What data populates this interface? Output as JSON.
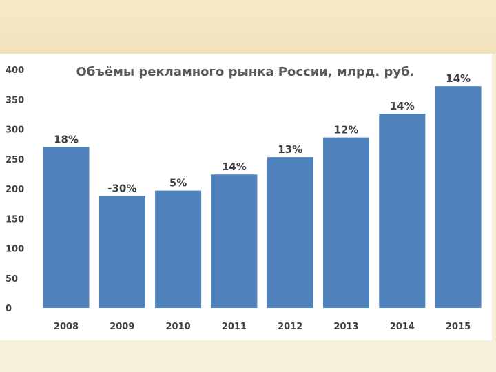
{
  "chart_data": {
    "type": "bar",
    "title": "Объёмы рекламного рынка России, млрд. руб.",
    "xlabel": "",
    "ylabel": "",
    "categories": [
      "2008",
      "2009",
      "2010",
      "2011",
      "2012",
      "2013",
      "2014",
      "2015"
    ],
    "values": [
      270,
      188,
      197,
      224,
      253,
      286,
      326,
      372
    ],
    "data_labels": [
      "18%",
      "-30%",
      "5%",
      "14%",
      "13%",
      "12%",
      "14%",
      "14%"
    ],
    "ylim": [
      0,
      400
    ],
    "yticks": [
      "0",
      "50",
      "100",
      "150",
      "200",
      "250",
      "300",
      "350",
      "400"
    ],
    "bar_color": "#4f81bd",
    "grid": false,
    "legend": "none"
  }
}
